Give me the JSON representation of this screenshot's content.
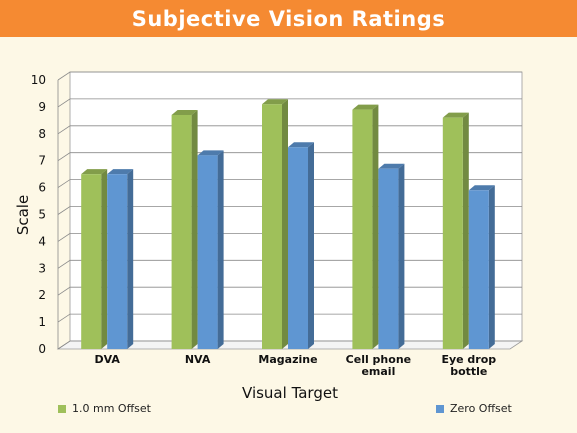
{
  "title": "Subjective Vision Ratings",
  "colors": {
    "header": "#f58a32",
    "background": "#fdf8e6"
  },
  "chart_data": {
    "type": "bar",
    "title": "Subjective Vision Ratings",
    "xlabel": "Visual Target",
    "ylabel": "Scale",
    "ylim": [
      0,
      10
    ],
    "yticks": [
      "0",
      "1",
      "2",
      "3",
      "4",
      "5",
      "6",
      "7",
      "8",
      "9",
      "10"
    ],
    "categories": [
      "DVA",
      "NVA",
      "Magazine",
      "Cell phone\nemail",
      "Eye drop\nbottle"
    ],
    "series": [
      {
        "name": "1.0 mm Offset",
        "values": [
          6.5,
          8.7,
          9.1,
          8.9,
          8.6
        ],
        "color": "#9fc05a"
      },
      {
        "name": "Zero Offset",
        "values": [
          6.5,
          7.2,
          7.5,
          6.7,
          5.9
        ],
        "color": "#5f96d2"
      }
    ],
    "grid": true,
    "legend": "bottom"
  }
}
